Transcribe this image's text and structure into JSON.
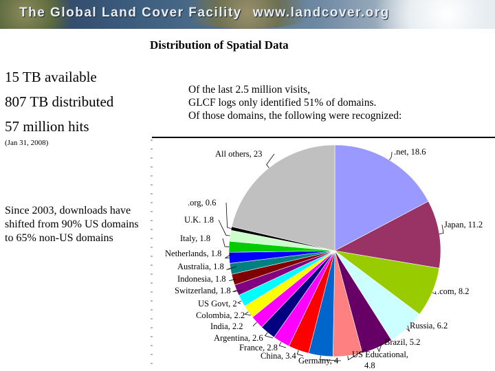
{
  "banner": {
    "title": "The Global Land Cover Facility",
    "url": "www.landcover.org"
  },
  "page_title": "Distribution of Spatial Data",
  "stats": {
    "available": "15 TB available",
    "distributed": "807 TB distributed",
    "hits": "57 million hits",
    "date": "(Jan 31, 2008)"
  },
  "shift_note": "Since 2003, downloads have shifted from 90% US domains to 65% non-US domains",
  "visits_note": [
    "Of the last 2.5 million visits,",
    "GLCF logs only identified 51% of domains.",
    "Of those domains, the following were recognized:"
  ],
  "chart_data": {
    "type": "pie",
    "title": "",
    "start": "top, clockwise",
    "slices": [
      {
        "label": ".net",
        "value": 18.6,
        "text": ".net, 18.6",
        "color": "#9999ff"
      },
      {
        "label": "Japan",
        "value": 11.2,
        "text": "Japan, 11.2",
        "color": "#993366"
      },
      {
        "label": ".com",
        "value": 8.2,
        "text": ".com, 8.2",
        "color": "#99cc00"
      },
      {
        "label": "Russia",
        "value": 6.2,
        "text": "Russia, 6.2",
        "color": "#ccffff"
      },
      {
        "label": "Brazil",
        "value": 5.2,
        "text": "Brazil, 5.2",
        "color": "#660066"
      },
      {
        "label": "US Educational",
        "value": 4.8,
        "text": "US Educational, 4.8",
        "color": "#ff8080"
      },
      {
        "label": "Germany",
        "value": 4,
        "text": "Germany, 4",
        "color": "#0066cc"
      },
      {
        "label": "China",
        "value": 3.4,
        "text": "China, 3.4",
        "color": "#ff0000"
      },
      {
        "label": "France",
        "value": 2.8,
        "text": "France, 2.8",
        "color": "#ff00ff"
      },
      {
        "label": "Argentina",
        "value": 2.6,
        "text": "Argentina, 2.6",
        "color": "#000080"
      },
      {
        "label": "India",
        "value": 2.2,
        "text": "India, 2.2",
        "color": "#ff00ff"
      },
      {
        "label": "Colombia",
        "value": 2.2,
        "text": "Colombia, 2.2",
        "color": "#ffff00"
      },
      {
        "label": "US Govt",
        "value": 2,
        "text": "US Govt, 2",
        "color": "#00ffff"
      },
      {
        "label": "Switzerland",
        "value": 1.8,
        "text": "Switzerland, 1.8",
        "color": "#800080"
      },
      {
        "label": "Indonesia",
        "value": 1.8,
        "text": "Indonesia, 1.8",
        "color": "#800000"
      },
      {
        "label": "Australia",
        "value": 1.8,
        "text": "Australia, 1.8",
        "color": "#008080"
      },
      {
        "label": "Netherlands",
        "value": 1.8,
        "text": "Netherlands, 1.8",
        "color": "#0000ff"
      },
      {
        "label": "Italy",
        "value": 1.8,
        "text": "Italy, 1.8",
        "color": "#00cc00"
      },
      {
        "label": "U.K.",
        "value": 1.8,
        "text": "U.K. 1.8",
        "color": "#ccffcc"
      },
      {
        "label": ".org",
        "value": 0.6,
        "text": ".org, 0.6",
        "color": "#000000"
      },
      {
        "label": "All others",
        "value": 23,
        "text": "All others, 23",
        "color": "#c0c0c0"
      }
    ]
  }
}
